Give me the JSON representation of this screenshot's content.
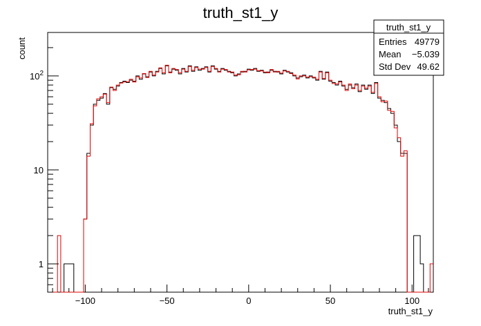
{
  "chart_data": {
    "type": "histogram",
    "title": "truth_st1_y",
    "xlabel": "truth_st1_y",
    "ylabel": "count",
    "xlim": [
      -123,
      113
    ],
    "ylim": [
      0.5,
      290
    ],
    "log_y": true,
    "grid": false,
    "x_ticks": [
      -100,
      -50,
      0,
      50,
      100
    ],
    "y_ticks": [
      {
        "value": 1,
        "label": "1"
      },
      {
        "value": 10,
        "label": "10"
      },
      {
        "value": 100,
        "label": "10",
        "exp": "2"
      }
    ],
    "bin_width": 2,
    "series": [
      {
        "color": "#000000",
        "bins": [
          [
            -123,
            0
          ],
          [
            -121,
            0
          ],
          [
            -119,
            0
          ],
          [
            -117,
            0
          ],
          [
            -115,
            0
          ],
          [
            -113,
            1
          ],
          [
            -111,
            1
          ],
          [
            -109,
            1
          ],
          [
            -107,
            0
          ],
          [
            -105,
            0
          ],
          [
            -103,
            0
          ],
          [
            -101,
            3
          ],
          [
            -99,
            15
          ],
          [
            -97,
            30
          ],
          [
            -95,
            50
          ],
          [
            -93,
            55
          ],
          [
            -91,
            58
          ],
          [
            -89,
            65
          ],
          [
            -87,
            50
          ],
          [
            -85,
            75
          ],
          [
            -83,
            72
          ],
          [
            -81,
            78
          ],
          [
            -79,
            85
          ],
          [
            -77,
            88
          ],
          [
            -75,
            85
          ],
          [
            -73,
            90
          ],
          [
            -71,
            88
          ],
          [
            -69,
            100
          ],
          [
            -67,
            92
          ],
          [
            -65,
            105
          ],
          [
            -63,
            98
          ],
          [
            -61,
            110
          ],
          [
            -59,
            100
          ],
          [
            -57,
            112
          ],
          [
            -55,
            120
          ],
          [
            -53,
            105
          ],
          [
            -51,
            128
          ],
          [
            -49,
            110
          ],
          [
            -47,
            118
          ],
          [
            -45,
            115
          ],
          [
            -43,
            105
          ],
          [
            -41,
            120
          ],
          [
            -39,
            110
          ],
          [
            -37,
            128
          ],
          [
            -35,
            112
          ],
          [
            -33,
            125
          ],
          [
            -31,
            115
          ],
          [
            -29,
            120
          ],
          [
            -27,
            125
          ],
          [
            -25,
            110
          ],
          [
            -23,
            128
          ],
          [
            -21,
            118
          ],
          [
            -19,
            112
          ],
          [
            -17,
            120
          ],
          [
            -15,
            115
          ],
          [
            -13,
            112
          ],
          [
            -11,
            108
          ],
          [
            -9,
            100
          ],
          [
            -7,
            105
          ],
          [
            -5,
            110
          ],
          [
            -3,
            112
          ],
          [
            -1,
            118
          ],
          [
            1,
            115
          ],
          [
            3,
            120
          ],
          [
            5,
            112
          ],
          [
            7,
            115
          ],
          [
            9,
            108
          ],
          [
            11,
            110
          ],
          [
            13,
            115
          ],
          [
            15,
            112
          ],
          [
            17,
            110
          ],
          [
            19,
            105
          ],
          [
            21,
            115
          ],
          [
            23,
            110
          ],
          [
            25,
            108
          ],
          [
            27,
            100
          ],
          [
            29,
            95
          ],
          [
            31,
            98
          ],
          [
            33,
            102
          ],
          [
            35,
            95
          ],
          [
            37,
            100
          ],
          [
            39,
            95
          ],
          [
            41,
            90
          ],
          [
            43,
            112
          ],
          [
            45,
            92
          ],
          [
            47,
            110
          ],
          [
            49,
            88
          ],
          [
            51,
            85
          ],
          [
            53,
            80
          ],
          [
            55,
            88
          ],
          [
            57,
            78
          ],
          [
            59,
            72
          ],
          [
            61,
            80
          ],
          [
            63,
            75
          ],
          [
            65,
            82
          ],
          [
            67,
            68
          ],
          [
            69,
            80
          ],
          [
            71,
            72
          ],
          [
            73,
            80
          ],
          [
            75,
            65
          ],
          [
            77,
            85
          ],
          [
            79,
            58
          ],
          [
            81,
            55
          ],
          [
            83,
            52
          ],
          [
            85,
            45
          ],
          [
            87,
            40
          ],
          [
            89,
            30
          ],
          [
            91,
            20
          ],
          [
            93,
            15
          ],
          [
            95,
            15
          ],
          [
            97,
            0
          ],
          [
            99,
            0
          ],
          [
            101,
            2
          ],
          [
            103,
            2
          ],
          [
            105,
            1
          ],
          [
            107,
            0
          ],
          [
            109,
            0
          ],
          [
            111,
            0
          ]
        ]
      },
      {
        "color": "#e00000",
        "bins": [
          [
            -123,
            0
          ],
          [
            -121,
            0
          ],
          [
            -119,
            0
          ],
          [
            -117,
            2
          ],
          [
            -115,
            0
          ],
          [
            -113,
            0
          ],
          [
            -111,
            0
          ],
          [
            -109,
            0
          ],
          [
            -107,
            0
          ],
          [
            -105,
            0
          ],
          [
            -103,
            0
          ],
          [
            -101,
            3
          ],
          [
            -99,
            14
          ],
          [
            -97,
            31
          ],
          [
            -95,
            48
          ],
          [
            -93,
            57
          ],
          [
            -91,
            60
          ],
          [
            -89,
            64
          ],
          [
            -87,
            52
          ],
          [
            -85,
            76
          ],
          [
            -83,
            70
          ],
          [
            -81,
            80
          ],
          [
            -79,
            84
          ],
          [
            -77,
            86
          ],
          [
            -75,
            87
          ],
          [
            -73,
            92
          ],
          [
            -71,
            86
          ],
          [
            -69,
            98
          ],
          [
            -67,
            95
          ],
          [
            -65,
            106
          ],
          [
            -63,
            96
          ],
          [
            -61,
            112
          ],
          [
            -59,
            102
          ],
          [
            -57,
            110
          ],
          [
            -55,
            122
          ],
          [
            -53,
            108
          ],
          [
            -51,
            130
          ],
          [
            -49,
            108
          ],
          [
            -47,
            120
          ],
          [
            -45,
            117
          ],
          [
            -43,
            108
          ],
          [
            -41,
            118
          ],
          [
            -39,
            112
          ],
          [
            -37,
            126
          ],
          [
            -35,
            115
          ],
          [
            -33,
            123
          ],
          [
            -31,
            118
          ],
          [
            -29,
            118
          ],
          [
            -27,
            123
          ],
          [
            -25,
            112
          ],
          [
            -23,
            126
          ],
          [
            -21,
            120
          ],
          [
            -19,
            110
          ],
          [
            -17,
            118
          ],
          [
            -15,
            117
          ],
          [
            -13,
            110
          ],
          [
            -11,
            110
          ],
          [
            -9,
            102
          ],
          [
            -7,
            103
          ],
          [
            -5,
            112
          ],
          [
            -3,
            110
          ],
          [
            -1,
            116
          ],
          [
            1,
            117
          ],
          [
            3,
            118
          ],
          [
            5,
            114
          ],
          [
            7,
            113
          ],
          [
            9,
            110
          ],
          [
            11,
            108
          ],
          [
            13,
            117
          ],
          [
            15,
            110
          ],
          [
            17,
            112
          ],
          [
            19,
            107
          ],
          [
            21,
            113
          ],
          [
            23,
            112
          ],
          [
            25,
            106
          ],
          [
            27,
            102
          ],
          [
            29,
            93
          ],
          [
            31,
            100
          ],
          [
            33,
            100
          ],
          [
            35,
            97
          ],
          [
            37,
            98
          ],
          [
            39,
            97
          ],
          [
            41,
            92
          ],
          [
            43,
            110
          ],
          [
            45,
            94
          ],
          [
            47,
            108
          ],
          [
            49,
            90
          ],
          [
            51,
            83
          ],
          [
            53,
            82
          ],
          [
            55,
            86
          ],
          [
            57,
            80
          ],
          [
            59,
            70
          ],
          [
            61,
            82
          ],
          [
            63,
            73
          ],
          [
            65,
            80
          ],
          [
            67,
            70
          ],
          [
            69,
            78
          ],
          [
            71,
            74
          ],
          [
            73,
            78
          ],
          [
            75,
            67
          ],
          [
            77,
            83
          ],
          [
            79,
            60
          ],
          [
            81,
            53
          ],
          [
            83,
            54
          ],
          [
            85,
            43
          ],
          [
            87,
            42
          ],
          [
            89,
            28
          ],
          [
            91,
            22
          ],
          [
            93,
            14
          ],
          [
            95,
            16
          ],
          [
            97,
            0
          ],
          [
            99,
            0
          ],
          [
            101,
            0
          ],
          [
            103,
            0
          ],
          [
            105,
            0
          ],
          [
            107,
            0
          ],
          [
            109,
            0
          ],
          [
            111,
            1
          ]
        ]
      }
    ],
    "stats_box": {
      "title": "truth_st1_y",
      "rows": [
        {
          "label": "Entries",
          "value": "49779"
        },
        {
          "label": "Mean",
          "value": "−5.039"
        },
        {
          "label": "Std Dev",
          "value": "49.62"
        }
      ]
    }
  }
}
